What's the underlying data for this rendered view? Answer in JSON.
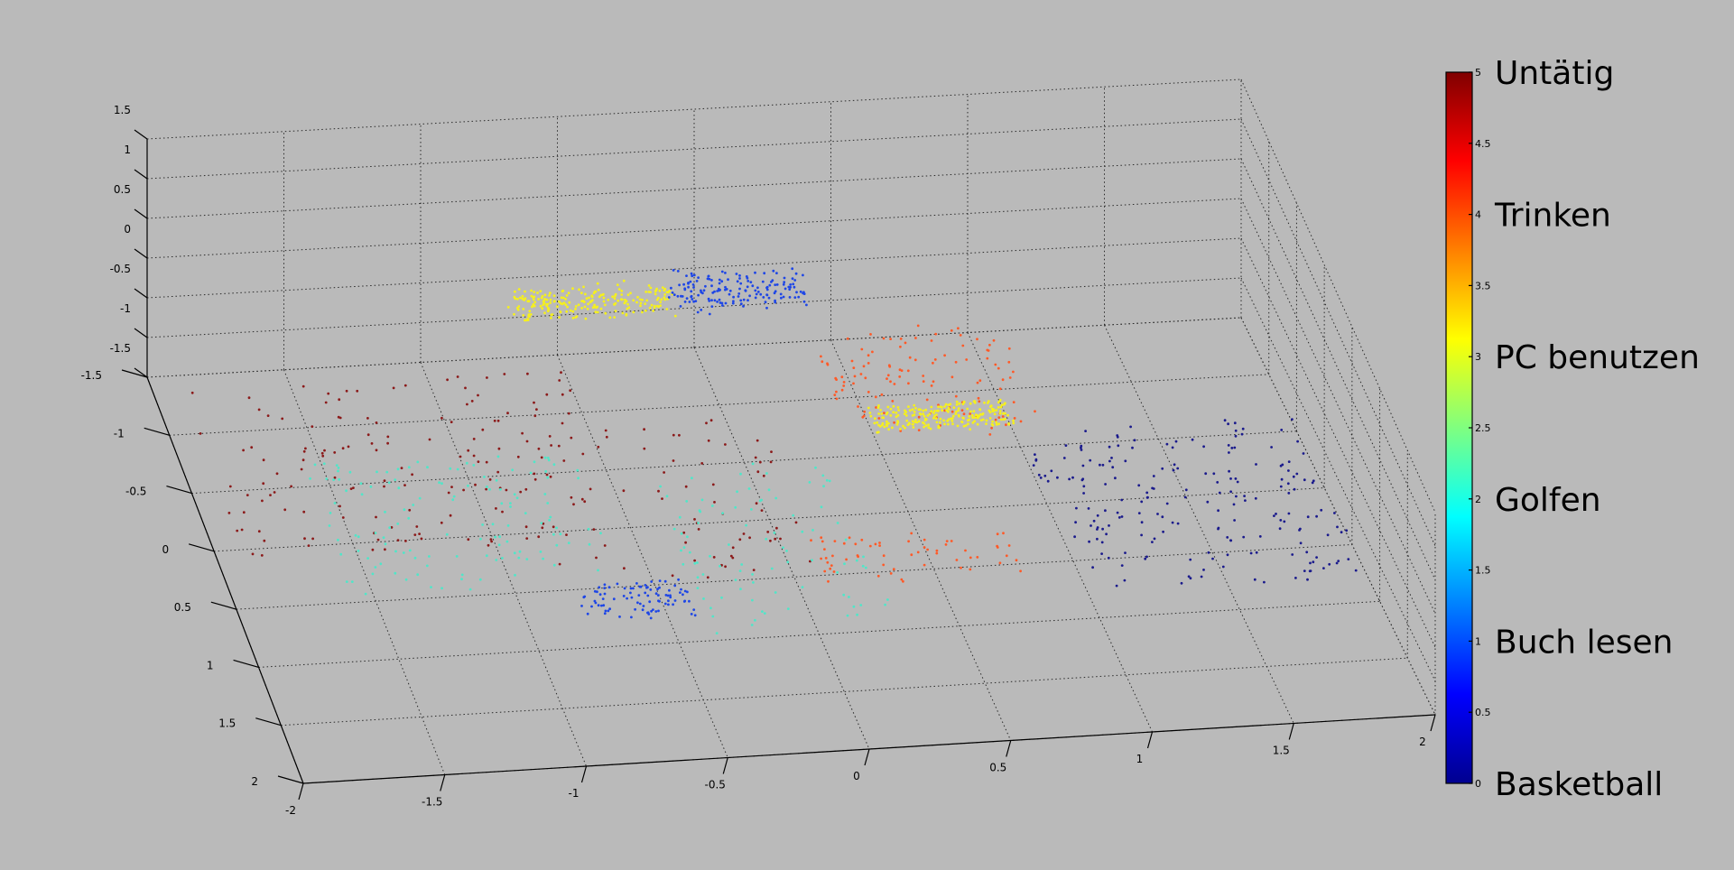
{
  "chart_data": {
    "type": "scatter",
    "subtype": "3d-scatter",
    "title": "",
    "xlabel": "",
    "ylabel": "",
    "zlabel": "",
    "xlim": [
      -2,
      2
    ],
    "ylim": [
      -1.5,
      2
    ],
    "zlim": [
      -1.5,
      1.5
    ],
    "x_ticks": [
      "-2",
      "-1.5",
      "-1",
      "-0.5",
      "0",
      "0.5",
      "1",
      "1.5",
      "2"
    ],
    "y_ticks": [
      "-1.5",
      "-1",
      "-0.5",
      "0",
      "0.5",
      "1",
      "1.5",
      "2"
    ],
    "z_ticks": [
      "-1.5",
      "-1",
      "-0.5",
      "0",
      "0.5",
      "1",
      "1.5"
    ],
    "grid": true,
    "colormap": "jet",
    "colorbar": {
      "range": [
        0,
        5
      ],
      "ticks": [
        "0",
        "0.5",
        "1",
        "1.5",
        "2",
        "2.5",
        "3",
        "3.5",
        "4",
        "4.5",
        "5"
      ],
      "class_labels": [
        {
          "value": 5,
          "label": "Untätig"
        },
        {
          "value": 4,
          "label": "Trinken"
        },
        {
          "value": 3,
          "label": "PC benutzen"
        },
        {
          "value": 2,
          "label": "Golfen"
        },
        {
          "value": 1,
          "label": "Buch lesen"
        },
        {
          "value": 0,
          "label": "Basketball"
        }
      ]
    },
    "series": [
      {
        "value": 5,
        "color": "#8b1a1a",
        "clusters": [
          {
            "x": [
              -1.9,
              -0.5
            ],
            "y": [
              -1.3,
              0.2
            ],
            "z": [
              -1.5,
              -1.3
            ],
            "n": 150
          },
          {
            "x": [
              -0.9,
              0.1
            ],
            "y": [
              -0.8,
              0.5
            ],
            "z": [
              -1.5,
              -1.3
            ],
            "n": 70
          }
        ]
      },
      {
        "value": 4,
        "color": "#ff5a28",
        "clusters": [
          {
            "x": [
              0.4,
              1.1
            ],
            "y": [
              -1.4,
              -0.6
            ],
            "z": [
              -1.5,
              -1.2
            ],
            "n": 120
          },
          {
            "x": [
              0.1,
              0.8
            ],
            "y": [
              0.2,
              0.6
            ],
            "z": [
              -1.5,
              -1.4
            ],
            "n": 60
          }
        ]
      },
      {
        "value": 3,
        "color": "#f5f01e",
        "clusters": [
          {
            "x": [
              -0.7,
              -0.1
            ],
            "y": [
              -1.5,
              -1.3
            ],
            "z": [
              -0.8,
              -0.6
            ],
            "n": 220
          },
          {
            "x": [
              0.5,
              1.0
            ],
            "y": [
              -0.8,
              -0.6
            ],
            "z": [
              -1.4,
              -1.3
            ],
            "n": 220
          }
        ]
      },
      {
        "value": 2,
        "color": "#50e6c8",
        "clusters": [
          {
            "x": [
              -1.6,
              -0.6
            ],
            "y": [
              -0.6,
              0.5
            ],
            "z": [
              -1.5,
              -1.3
            ],
            "n": 130
          },
          {
            "x": [
              -0.4,
              0.3
            ],
            "y": [
              -0.4,
              1.0
            ],
            "z": [
              -1.5,
              -1.3
            ],
            "n": 90
          }
        ]
      },
      {
        "value": 1,
        "color": "#1e46e6",
        "clusters": [
          {
            "x": [
              -0.1,
              0.4
            ],
            "y": [
              -1.5,
              -1.3
            ],
            "z": [
              -0.8,
              -0.5
            ],
            "n": 160
          },
          {
            "x": [
              -0.8,
              -0.4
            ],
            "y": [
              0.5,
              0.8
            ],
            "z": [
              -1.5,
              -1.4
            ],
            "n": 90
          }
        ]
      },
      {
        "value": 0,
        "color": "#1a1a8c",
        "clusters": [
          {
            "x": [
              1.0,
              2.0
            ],
            "y": [
              -0.6,
              0.8
            ],
            "z": [
              -1.5,
              -1.4
            ],
            "n": 200
          }
        ]
      }
    ]
  }
}
